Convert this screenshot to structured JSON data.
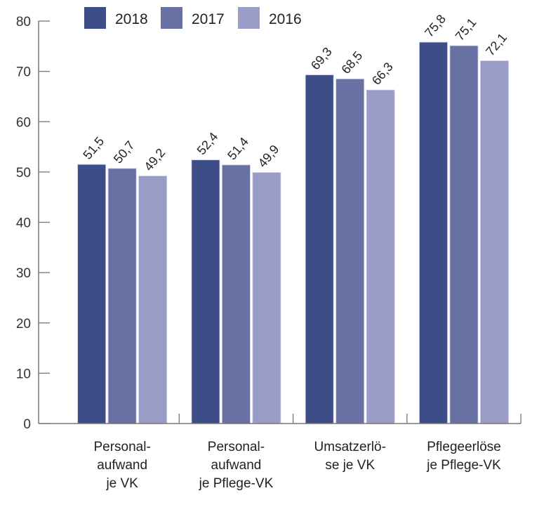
{
  "chart_data": {
    "type": "bar",
    "title": "",
    "xlabel": "",
    "ylabel": "",
    "ylim": [
      0,
      80
    ],
    "yticks": [
      0,
      10,
      20,
      30,
      40,
      50,
      60,
      70,
      80
    ],
    "grid": false,
    "legend_position": "top",
    "categories": [
      [
        "Personal-",
        "aufwand",
        "je VK"
      ],
      [
        "Personal-",
        "aufwand",
        "je Pflege-VK"
      ],
      [
        "Umsatzerlö-",
        "se je VK"
      ],
      [
        "Pflegeerlöse",
        "je Pflege-VK"
      ]
    ],
    "series": [
      {
        "name": "2018",
        "color": "#3d4d88",
        "values": [
          51.5,
          52.4,
          69.3,
          75.8
        ],
        "labels": [
          "51,5",
          "52,4",
          "69,3",
          "75,8"
        ]
      },
      {
        "name": "2017",
        "color": "#6871a3",
        "values": [
          50.7,
          51.4,
          68.5,
          75.1
        ],
        "labels": [
          "50,7",
          "51,4",
          "68,5",
          "75,1"
        ]
      },
      {
        "name": "2016",
        "color": "#999cc6",
        "values": [
          49.2,
          49.9,
          66.3,
          72.1
        ],
        "labels": [
          "49,2",
          "49,9",
          "66,3",
          "72,1"
        ]
      }
    ]
  }
}
